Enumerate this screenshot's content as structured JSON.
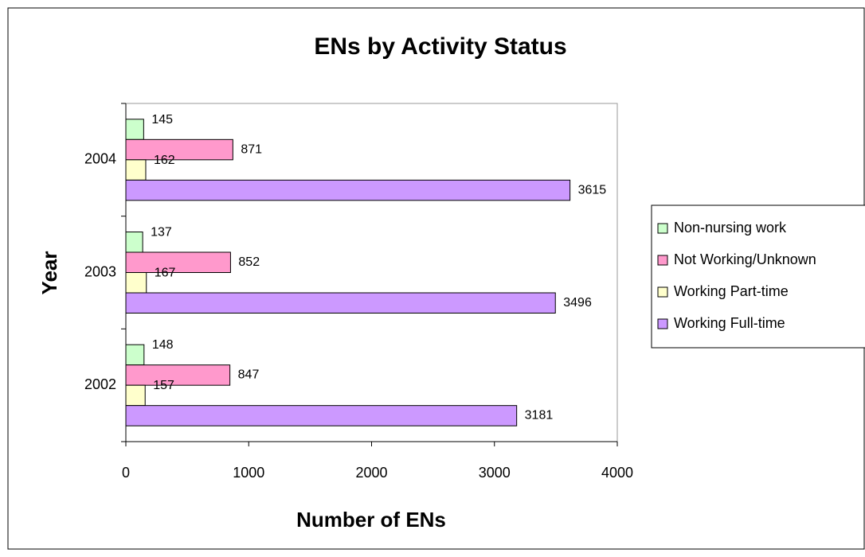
{
  "chart_data": {
    "type": "hbar",
    "title": "ENs by Activity Status",
    "x_label": "Number of ENs",
    "y_label": "Year",
    "categories": [
      "2002",
      "2003",
      "2004"
    ],
    "series": [
      {
        "name": "Non-nursing work",
        "color": "#ccffcc",
        "values": [
          148,
          137,
          145
        ]
      },
      {
        "name": "Not Working/Unknown",
        "color": "#ff99cc",
        "values": [
          847,
          852,
          871
        ]
      },
      {
        "name": "Working Part-time",
        "color": "#ffffcc",
        "values": [
          157,
          167,
          162
        ]
      },
      {
        "name": "Working Full-time",
        "color": "#cc99ff",
        "values": [
          3181,
          3496,
          3615
        ]
      }
    ],
    "xlim": [
      0,
      4000
    ],
    "xticks": [
      0,
      1000,
      2000,
      3000,
      4000
    ],
    "grid": false,
    "legend": "right"
  }
}
